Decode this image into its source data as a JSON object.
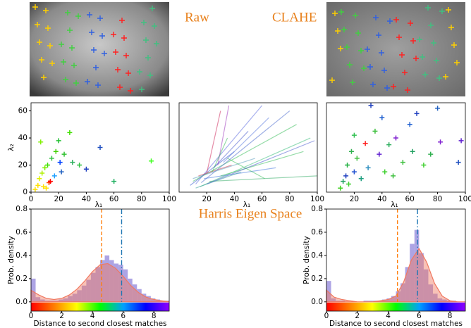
{
  "figure_labels": {
    "raw": "Raw",
    "clahe": "CLAHE",
    "space": "Harris Eigen Space"
  },
  "chart_data": [
    {
      "type": "scatter",
      "x_label": "λ₁",
      "y_label": "λ₂",
      "xlim": [
        0,
        100
      ],
      "ylim": [
        0,
        66
      ],
      "xticks": [
        0,
        20,
        40,
        60,
        80,
        100
      ],
      "yticks": [
        0,
        20,
        40,
        60
      ],
      "x": [
        3,
        5,
        6,
        8,
        9,
        10,
        12,
        13,
        14,
        15,
        17,
        18,
        20,
        21,
        22,
        24,
        28,
        30,
        35,
        40,
        50,
        60,
        87,
        7,
        11
      ],
      "y": [
        2,
        5,
        10,
        14,
        4,
        18,
        20,
        7,
        8,
        25,
        12,
        30,
        38,
        22,
        15,
        28,
        44,
        22,
        20,
        17,
        33,
        8,
        23,
        37,
        3
      ],
      "colors": [
        "#ffe000",
        "#ffe000",
        "#e0f000",
        "#b0f000",
        "#ffe000",
        "#80f000",
        "#40e000",
        "#ff4000",
        "#ff0000",
        "#30c040",
        "#20a0ff",
        "#40d000",
        "#20c030",
        "#0040ff",
        "#2060c0",
        "#30c030",
        "#40e000",
        "#30b060",
        "#30c040",
        "#2040c0",
        "#2050c0",
        "#20b060",
        "#40ff20",
        "#80f000",
        "#ffe000"
      ]
    },
    {
      "type": "arrows",
      "x_label": "λ₁",
      "xlim": [
        0,
        100
      ],
      "ylim": [
        0,
        66
      ],
      "xticks": [
        20,
        40,
        60,
        80,
        100
      ],
      "x_start": [
        8,
        10,
        12,
        14,
        15,
        18,
        20,
        22,
        25,
        28,
        30,
        32,
        12,
        16,
        24,
        10,
        35,
        20
      ],
      "y_start": [
        5,
        8,
        6,
        12,
        4,
        10,
        14,
        8,
        18,
        20,
        12,
        22,
        3,
        7,
        15,
        10,
        25,
        6
      ],
      "x_end": [
        40,
        85,
        60,
        38,
        95,
        70,
        30,
        100,
        50,
        36,
        90,
        65,
        45,
        80,
        35,
        55,
        62,
        98
      ],
      "y_end": [
        30,
        50,
        64,
        20,
        40,
        18,
        60,
        12,
        45,
        64,
        30,
        55,
        15,
        60,
        40,
        25,
        10,
        38
      ],
      "colors": [
        "#4060d0",
        "#40c060",
        "#6070e0",
        "#d04050",
        "#40c080",
        "#5080e0",
        "#d03060",
        "#40b070",
        "#5060d0",
        "#a040c0",
        "#40c060",
        "#6080e0",
        "#40a0a0",
        "#5070d0",
        "#40c060",
        "#60a0c0",
        "#40c060",
        "#5060d0"
      ]
    },
    {
      "type": "scatter",
      "x_label": "λ₁",
      "xlim": [
        0,
        100
      ],
      "ylim": [
        0,
        66
      ],
      "xticks": [
        20,
        40,
        60,
        80,
        100
      ],
      "x": [
        10,
        12,
        14,
        15,
        16,
        18,
        20,
        22,
        25,
        28,
        30,
        32,
        35,
        38,
        40,
        45,
        48,
        50,
        55,
        60,
        62,
        65,
        70,
        75,
        80,
        82,
        95,
        97,
        20,
        42
      ],
      "y": [
        3,
        8,
        12,
        20,
        6,
        30,
        15,
        25,
        10,
        36,
        18,
        64,
        45,
        28,
        55,
        35,
        12,
        40,
        22,
        50,
        30,
        58,
        20,
        28,
        62,
        37,
        22,
        38,
        42,
        15
      ],
      "colors": [
        "#40d020",
        "#20a060",
        "#2040c0",
        "#20b040",
        "#40d030",
        "#30b050",
        "#2050d0",
        "#40c040",
        "#20a080",
        "#ff2020",
        "#3090c0",
        "#2040c0",
        "#40c040",
        "#6020d0",
        "#2060d0",
        "#30b060",
        "#40c040",
        "#8020d0",
        "#40c040",
        "#2060d0",
        "#20a060",
        "#2040c0",
        "#40d030",
        "#30b050",
        "#2060c0",
        "#8020d0",
        "#2050c0",
        "#6020d0",
        "#30c050",
        "#40d030"
      ]
    },
    {
      "type": "histogram",
      "x_label": "Distance to second closest matches",
      "y_label": "Prob. density",
      "xlim": [
        0,
        9
      ],
      "ylim": [
        -0.08,
        0.8
      ],
      "xticks": [
        0,
        2,
        4,
        6,
        8
      ],
      "yticks": [
        {
          "value": 0,
          "label": "0.0"
        },
        0.2,
        0.4,
        0.6,
        0.8
      ],
      "bins": [
        0,
        0.3,
        0.6,
        0.9,
        1.2,
        1.5,
        1.8,
        2.1,
        2.4,
        2.7,
        3,
        3.3,
        3.6,
        3.9,
        4.2,
        4.5,
        4.8,
        5.1,
        5.4,
        5.7,
        6,
        6.3,
        6.6,
        6.9,
        7.2,
        7.5,
        7.8,
        8.1,
        8.4,
        8.7,
        9
      ],
      "counts": [
        0.2,
        0.04,
        0.02,
        0.01,
        0.01,
        0.01,
        0.02,
        0.03,
        0.05,
        0.07,
        0.1,
        0.14,
        0.19,
        0.25,
        0.3,
        0.36,
        0.4,
        0.36,
        0.33,
        0.32,
        0.28,
        0.2,
        0.15,
        0.11,
        0.07,
        0.05,
        0.03,
        0.02,
        0.01,
        0.01
      ],
      "bar_color": "#6a5acd",
      "fit": {
        "color": "#f07860",
        "x": [
          0,
          0.5,
          1,
          1.5,
          2,
          2.5,
          3,
          3.5,
          4,
          4.5,
          5,
          5.5,
          6,
          6.5,
          7,
          7.5,
          8,
          8.5,
          9
        ],
        "values": [
          0.1,
          0.06,
          0.03,
          0.02,
          0.03,
          0.06,
          0.11,
          0.18,
          0.26,
          0.32,
          0.33,
          0.29,
          0.22,
          0.14,
          0.08,
          0.04,
          0.02,
          0.01,
          0
        ]
      },
      "vlines": [
        {
          "value": 4.6,
          "color": "#ff7f0e",
          "style": "dashed"
        },
        {
          "value": 5.9,
          "color": "#1f77b4",
          "style": "dashdot"
        }
      ]
    },
    {
      "type": "histogram",
      "x_label": "Distance to second closest matches",
      "y_label": "Prob. density",
      "xlim": [
        0,
        9
      ],
      "ylim": [
        -0.08,
        0.8
      ],
      "xticks": [
        0,
        2,
        4,
        6,
        8
      ],
      "yticks": [
        {
          "value": 0,
          "label": "0.0"
        },
        0.2,
        0.4,
        0.6,
        0.8
      ],
      "bins": [
        0,
        0.3,
        0.6,
        0.9,
        1.2,
        1.5,
        1.8,
        2.1,
        2.4,
        2.7,
        3,
        3.3,
        3.6,
        3.9,
        4.2,
        4.5,
        4.8,
        5.1,
        5.4,
        5.7,
        6,
        6.3,
        6.6,
        6.9,
        7.2,
        7.5,
        7.8,
        8.1,
        8.4,
        8.7,
        9
      ],
      "counts": [
        0.18,
        0.03,
        0.01,
        0.01,
        0,
        0,
        0,
        0,
        0.01,
        0.01,
        0.01,
        0.01,
        0.02,
        0.03,
        0.05,
        0.09,
        0.16,
        0.3,
        0.5,
        0.62,
        0.42,
        0.28,
        0.15,
        0.07,
        0.03,
        0.02,
        0.01,
        0.01,
        0,
        0
      ],
      "bar_color": "#6a5acd",
      "fit": {
        "color": "#f07860",
        "x": [
          0,
          0.5,
          1,
          1.5,
          2,
          2.5,
          3,
          3.5,
          4,
          4.5,
          5,
          5.5,
          6,
          6.5,
          7,
          7.5,
          8,
          8.5,
          9
        ],
        "values": [
          0.1,
          0.04,
          0.02,
          0.01,
          0,
          0,
          0,
          0.01,
          0.02,
          0.05,
          0.17,
          0.36,
          0.46,
          0.34,
          0.16,
          0.05,
          0.01,
          0,
          0
        ]
      },
      "vlines": [
        {
          "value": 4.6,
          "color": "#ff7f0e",
          "style": "dashed"
        },
        {
          "value": 5.9,
          "color": "#1f77b4",
          "style": "dashdot"
        }
      ]
    }
  ]
}
